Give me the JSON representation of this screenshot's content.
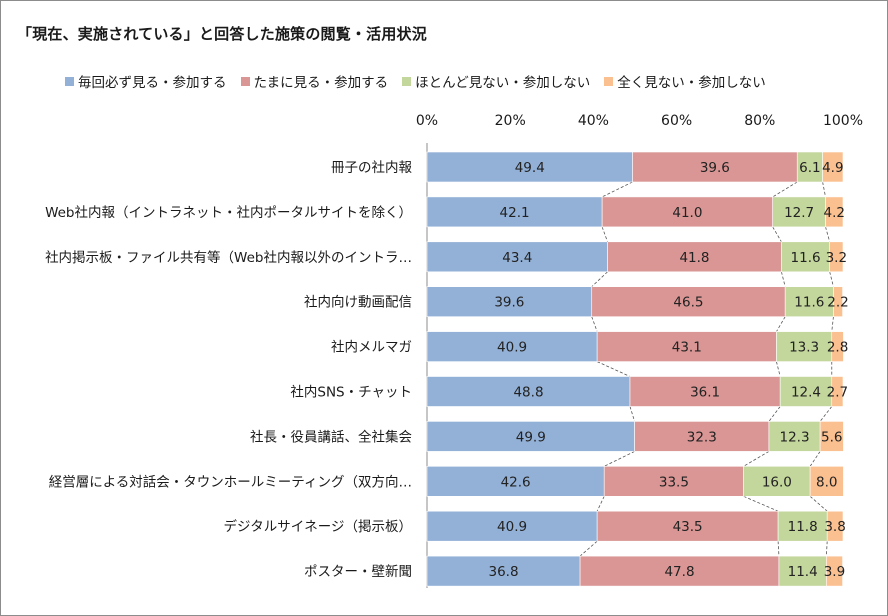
{
  "title": "「現在、実施されている」と回答した施策の閲覧・活用状況",
  "colors": {
    "series1": "#93b1d7",
    "series2": "#d99694",
    "series3": "#c3d69b",
    "series4": "#fac090",
    "connector": "#555555"
  },
  "chart_data": {
    "type": "bar",
    "orientation": "horizontal",
    "stacked": "percent",
    "title": "「現在、実施されている」と回答した施策の閲覧・活用状況",
    "legend_position": "top",
    "xlim": [
      0,
      100
    ],
    "x_ticks": [
      "0%",
      "20%",
      "40%",
      "60%",
      "80%",
      "100%"
    ],
    "categories": [
      "冊子の社内報",
      "Web社内報（イントラネット・社内ポータルサイトを除く）",
      "社内掲示板・ファイル共有等（Web社内報以外のイントラ…",
      "社内向け動画配信",
      "社内メルマガ",
      "社内SNS・チャット",
      "社長・役員講話、全社集会",
      "経営層による対話会・タウンホールミーティング（双方向…",
      "デジタルサイネージ（掲示板）",
      "ポスター・壁新聞"
    ],
    "series": [
      {
        "name": "毎回必ず見る・参加する",
        "values": [
          49.4,
          42.1,
          43.4,
          39.6,
          40.9,
          48.8,
          49.9,
          42.6,
          40.9,
          36.8
        ]
      },
      {
        "name": "たまに見る・参加する",
        "values": [
          39.6,
          41.0,
          41.8,
          46.5,
          43.1,
          36.1,
          32.3,
          33.5,
          43.5,
          47.8
        ]
      },
      {
        "name": "ほとんど見ない・参加しない",
        "values": [
          6.1,
          12.7,
          11.6,
          11.6,
          13.3,
          12.4,
          12.3,
          16.0,
          11.8,
          11.4
        ]
      },
      {
        "name": "全く見ない・参加しない",
        "values": [
          4.9,
          4.2,
          3.2,
          2.2,
          2.8,
          2.7,
          5.6,
          8.0,
          3.8,
          3.9
        ]
      }
    ],
    "data_labels": [
      [
        "49.4",
        "39.6",
        "6.1",
        "4.9"
      ],
      [
        "42.1",
        "41.0",
        "12.7",
        "4.2"
      ],
      [
        "43.4",
        "41.8",
        "11.6",
        "3.2"
      ],
      [
        "39.6",
        "46.5",
        "11.6",
        "2.2"
      ],
      [
        "40.9",
        "43.1",
        "13.3",
        "2.8"
      ],
      [
        "48.8",
        "36.1",
        "12.4",
        "2.7"
      ],
      [
        "49.9",
        "32.3",
        "12.3",
        "5.6"
      ],
      [
        "42.6",
        "33.5",
        "16.0",
        "8.0"
      ],
      [
        "40.9",
        "43.5",
        "11.8",
        "3.8"
      ],
      [
        "36.8",
        "47.8",
        "11.4",
        "3.9"
      ]
    ],
    "series_lines": true,
    "grid": false
  }
}
